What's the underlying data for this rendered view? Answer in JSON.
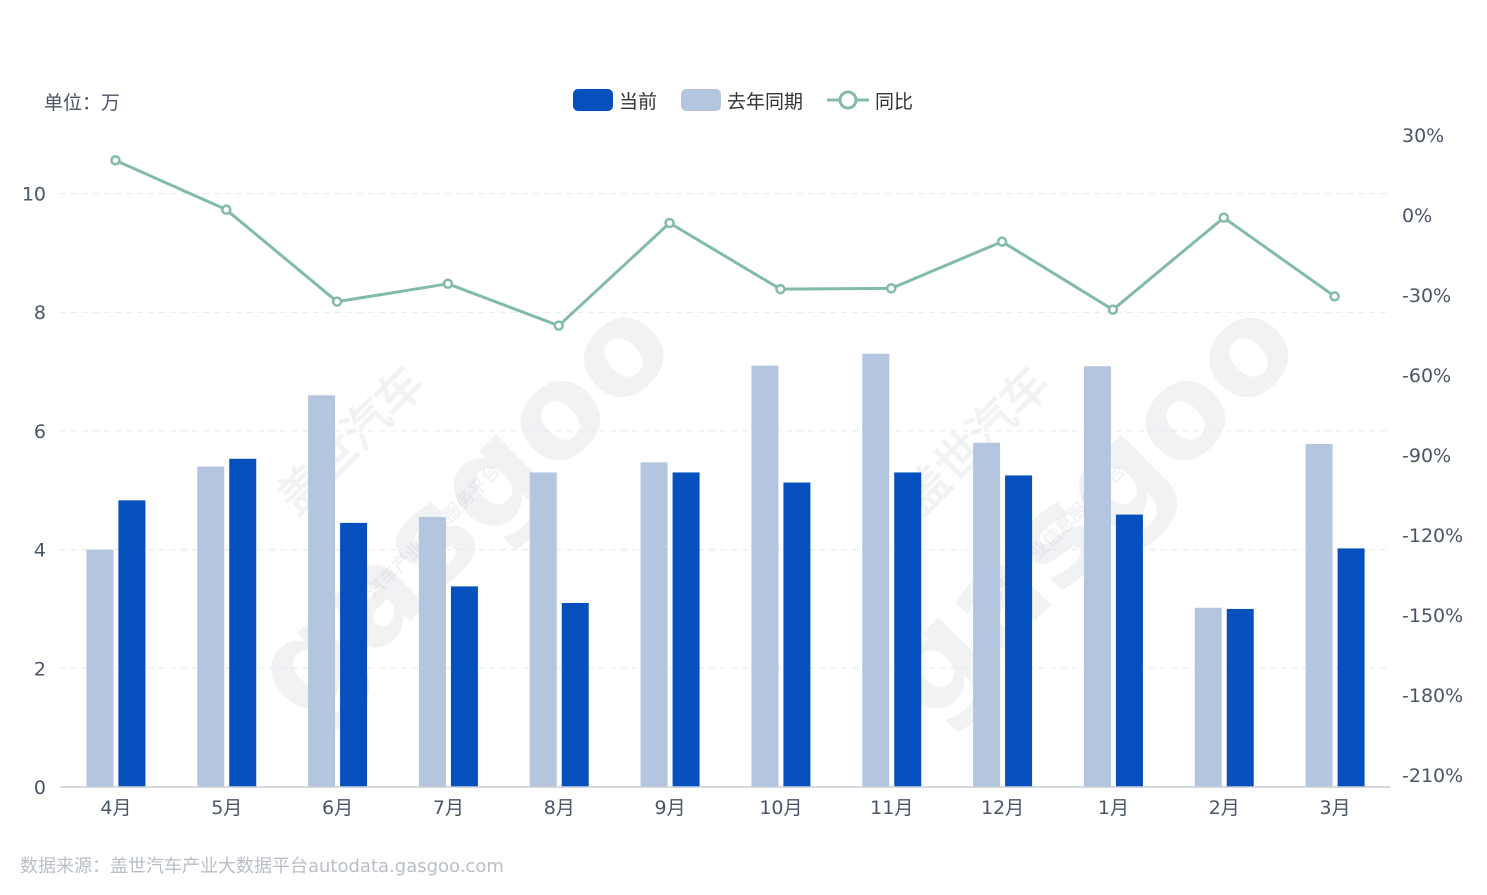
{
  "unit_label": "单位：万",
  "legend": {
    "current": "当前",
    "last_year": "去年同期",
    "yoy": "同比"
  },
  "source": "数据来源：盖世汽车产业大数据平台autodata.gasgoo.com",
  "watermark": {
    "brand_cn": "盖世汽车",
    "brand_en": "gasgoo",
    "tagline": "汽车产业信息服务平台"
  },
  "colors": {
    "current": "#0550bd",
    "last_year": "#b4c5e0",
    "yoy": "#82bba8",
    "axis_text": "#4a5568",
    "grid": "#e6e9ef"
  },
  "chart_data": {
    "type": "bar",
    "categories": [
      "4月",
      "5月",
      "6月",
      "7月",
      "8月",
      "9月",
      "10月",
      "11月",
      "12月",
      "1月",
      "2月",
      "3月"
    ],
    "series": [
      {
        "name": "当前",
        "type": "bar",
        "values": [
          4.83,
          5.53,
          4.45,
          3.38,
          3.1,
          5.3,
          5.13,
          5.3,
          5.25,
          4.59,
          3.0,
          4.02
        ]
      },
      {
        "name": "去年同期",
        "type": "bar",
        "values": [
          4.0,
          5.4,
          6.6,
          4.55,
          5.3,
          5.47,
          7.1,
          7.3,
          5.8,
          7.09,
          3.02,
          5.78
        ]
      },
      {
        "name": "同比",
        "type": "line",
        "axis": "right",
        "values": [
          20.5,
          2.0,
          -32.5,
          -25.8,
          -41.5,
          -3.0,
          -27.8,
          -27.5,
          -10.0,
          -35.5,
          -1.0,
          -30.5
        ]
      }
    ],
    "y_left": {
      "ylim": [
        0,
        11
      ],
      "ticks": [
        0,
        2,
        4,
        6,
        8,
        10
      ]
    },
    "y_right": {
      "ylim": [
        -210,
        30
      ],
      "ticks": [
        "30%",
        "0%",
        "-30%",
        "-60%",
        "-90%",
        "-120%",
        "-150%",
        "-180%",
        "-210%"
      ]
    },
    "legend_position": "top-center",
    "grid": true
  }
}
